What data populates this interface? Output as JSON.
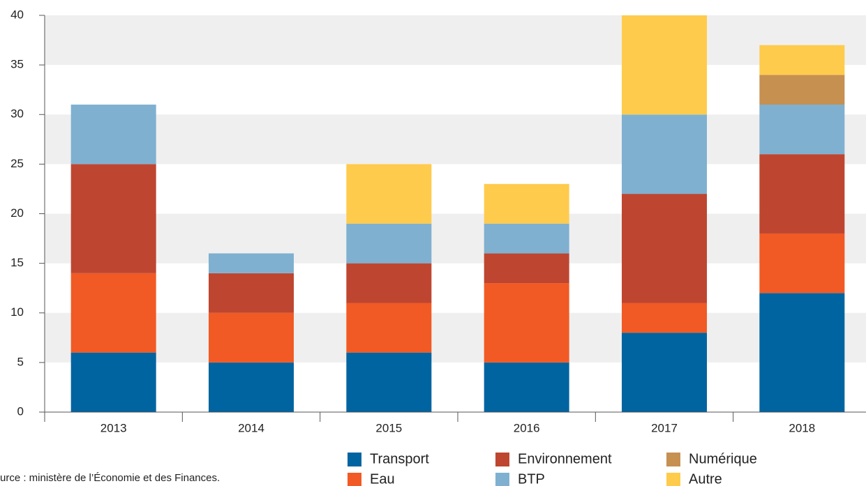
{
  "chart_data": {
    "type": "stacked_bar",
    "categories": [
      "2013",
      "2014",
      "2015",
      "2016",
      "2017",
      "2018"
    ],
    "series": [
      {
        "name": "Transport",
        "color": "#0064a0",
        "values": [
          6,
          5,
          6,
          5,
          8,
          12
        ]
      },
      {
        "name": "Eau",
        "color": "#f15a24",
        "values": [
          8,
          5,
          5,
          8,
          3,
          6
        ]
      },
      {
        "name": "Environnement",
        "color": "#be4630",
        "values": [
          11,
          4,
          4,
          3,
          11,
          8
        ]
      },
      {
        "name": "BTP",
        "color": "#7fb0d0",
        "values": [
          6,
          2,
          4,
          3,
          8,
          5
        ]
      },
      {
        "name": "Numérique",
        "color": "#c69051",
        "values": [
          0,
          0,
          0,
          0,
          0,
          3
        ]
      },
      {
        "name": "Autre",
        "color": "#ffcb4c",
        "values": [
          0,
          0,
          6,
          4,
          10,
          3
        ]
      }
    ],
    "ylim": [
      0,
      40
    ],
    "yticks": [
      0,
      5,
      10,
      15,
      20,
      25,
      30,
      35,
      40
    ],
    "grid": "alternate-bands",
    "source": "urce : ministère de l’Économie et des Finances."
  }
}
